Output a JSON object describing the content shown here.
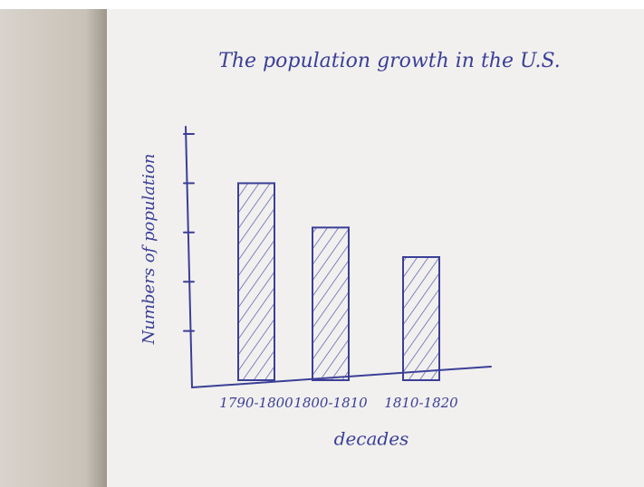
{
  "chart_data": {
    "type": "bar",
    "title": "The population growth in the U.S.",
    "categories": [
      "1790-1800",
      "1800-1810",
      "1810-1820"
    ],
    "values": [
      4,
      3.1,
      2.5
    ],
    "color": "#3b3f96",
    "x_label": "decades",
    "y_label": "Numbers of population",
    "ylim": [
      0,
      5
    ],
    "yticks": [
      1,
      2,
      3,
      4,
      5
    ],
    "grid": false
  }
}
